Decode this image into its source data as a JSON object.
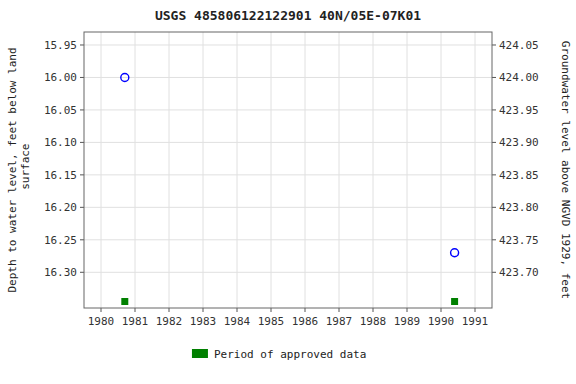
{
  "chart_data": {
    "type": "scatter",
    "title": "USGS 485806122122901 40N/05E-07K01",
    "ylabel": "Depth to water level, feet below land\n surface",
    "y2label": "Groundwater level above NGVD 1929, feet",
    "series": [
      {
        "color": "blue",
        "marker": "circle",
        "x": [
          1980.7,
          1990.4
        ],
        "values": [
          16.0,
          16.27
        ]
      },
      {
        "name": "Period of approved data",
        "color": "#008000",
        "marker": "square",
        "x": [
          1980.7,
          1990.4
        ],
        "values": [
          16.345,
          16.345
        ]
      }
    ],
    "xlim": [
      1979.5,
      1991.5
    ],
    "xticks": [
      1980,
      1981,
      1982,
      1983,
      1984,
      1985,
      1986,
      1987,
      1988,
      1989,
      1990,
      1991
    ],
    "ylim": [
      16.355,
      15.93
    ],
    "yticks": [
      15.95,
      {
        "value": 16.0,
        "label": "16.00"
      },
      16.05,
      {
        "value": 16.1,
        "label": "16.10"
      },
      16.15,
      {
        "value": 16.2,
        "label": "16.20"
      },
      16.25,
      {
        "value": 16.3,
        "label": "16.30"
      }
    ],
    "y2lim": [
      423.645,
      424.07
    ],
    "y2ticks": [
      {
        "value": 423.7,
        "label": "423.70"
      },
      423.75,
      {
        "value": 423.8,
        "label": "423.80"
      },
      423.85,
      {
        "value": 423.9,
        "label": "423.90"
      },
      423.95,
      {
        "value": 424.0,
        "label": "424.00"
      },
      424.05
    ],
    "grid": true,
    "legend": "bottom"
  }
}
